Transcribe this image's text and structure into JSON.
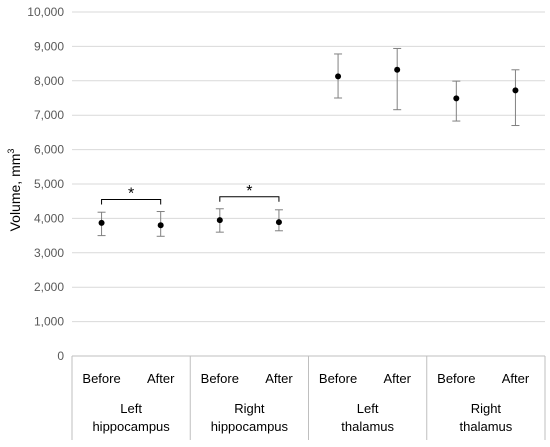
{
  "chart_data": {
    "type": "scatter",
    "title": "",
    "ylabel": "Volume, mm",
    "ylabel_superscript": "3",
    "ylim": [
      0,
      10000
    ],
    "yticks": [
      0,
      1000,
      2000,
      3000,
      4000,
      5000,
      6000,
      7000,
      8000,
      9000,
      10000
    ],
    "ytick_labels": [
      "0",
      "1,000",
      "2,000",
      "3,000",
      "4,000",
      "5,000",
      "6,000",
      "7,000",
      "8,000",
      "9,000",
      "10,000"
    ],
    "grid": true,
    "groups": [
      {
        "label_lines": [
          "Left",
          "hippocampus"
        ],
        "points": [
          {
            "x": "Before",
            "y": 3870,
            "err_low": 3500,
            "err_high": 4180
          },
          {
            "x": "After",
            "y": 3800,
            "err_low": 3480,
            "err_high": 4200
          }
        ],
        "significance": "*"
      },
      {
        "label_lines": [
          "Right",
          "hippocampus"
        ],
        "points": [
          {
            "x": "Before",
            "y": 3950,
            "err_low": 3600,
            "err_high": 4280
          },
          {
            "x": "After",
            "y": 3890,
            "err_low": 3640,
            "err_high": 4250
          }
        ],
        "significance": "*"
      },
      {
        "label_lines": [
          "Left",
          "thalamus"
        ],
        "points": [
          {
            "x": "Before",
            "y": 8130,
            "err_low": 7500,
            "err_high": 8780
          },
          {
            "x": "After",
            "y": 8320,
            "err_low": 7160,
            "err_high": 8940
          }
        ],
        "significance": ""
      },
      {
        "label_lines": [
          "Right",
          "thalamus"
        ],
        "points": [
          {
            "x": "Before",
            "y": 7490,
            "err_low": 6830,
            "err_high": 7990
          },
          {
            "x": "After",
            "y": 7720,
            "err_low": 6700,
            "err_high": 8320
          }
        ],
        "significance": ""
      }
    ]
  }
}
